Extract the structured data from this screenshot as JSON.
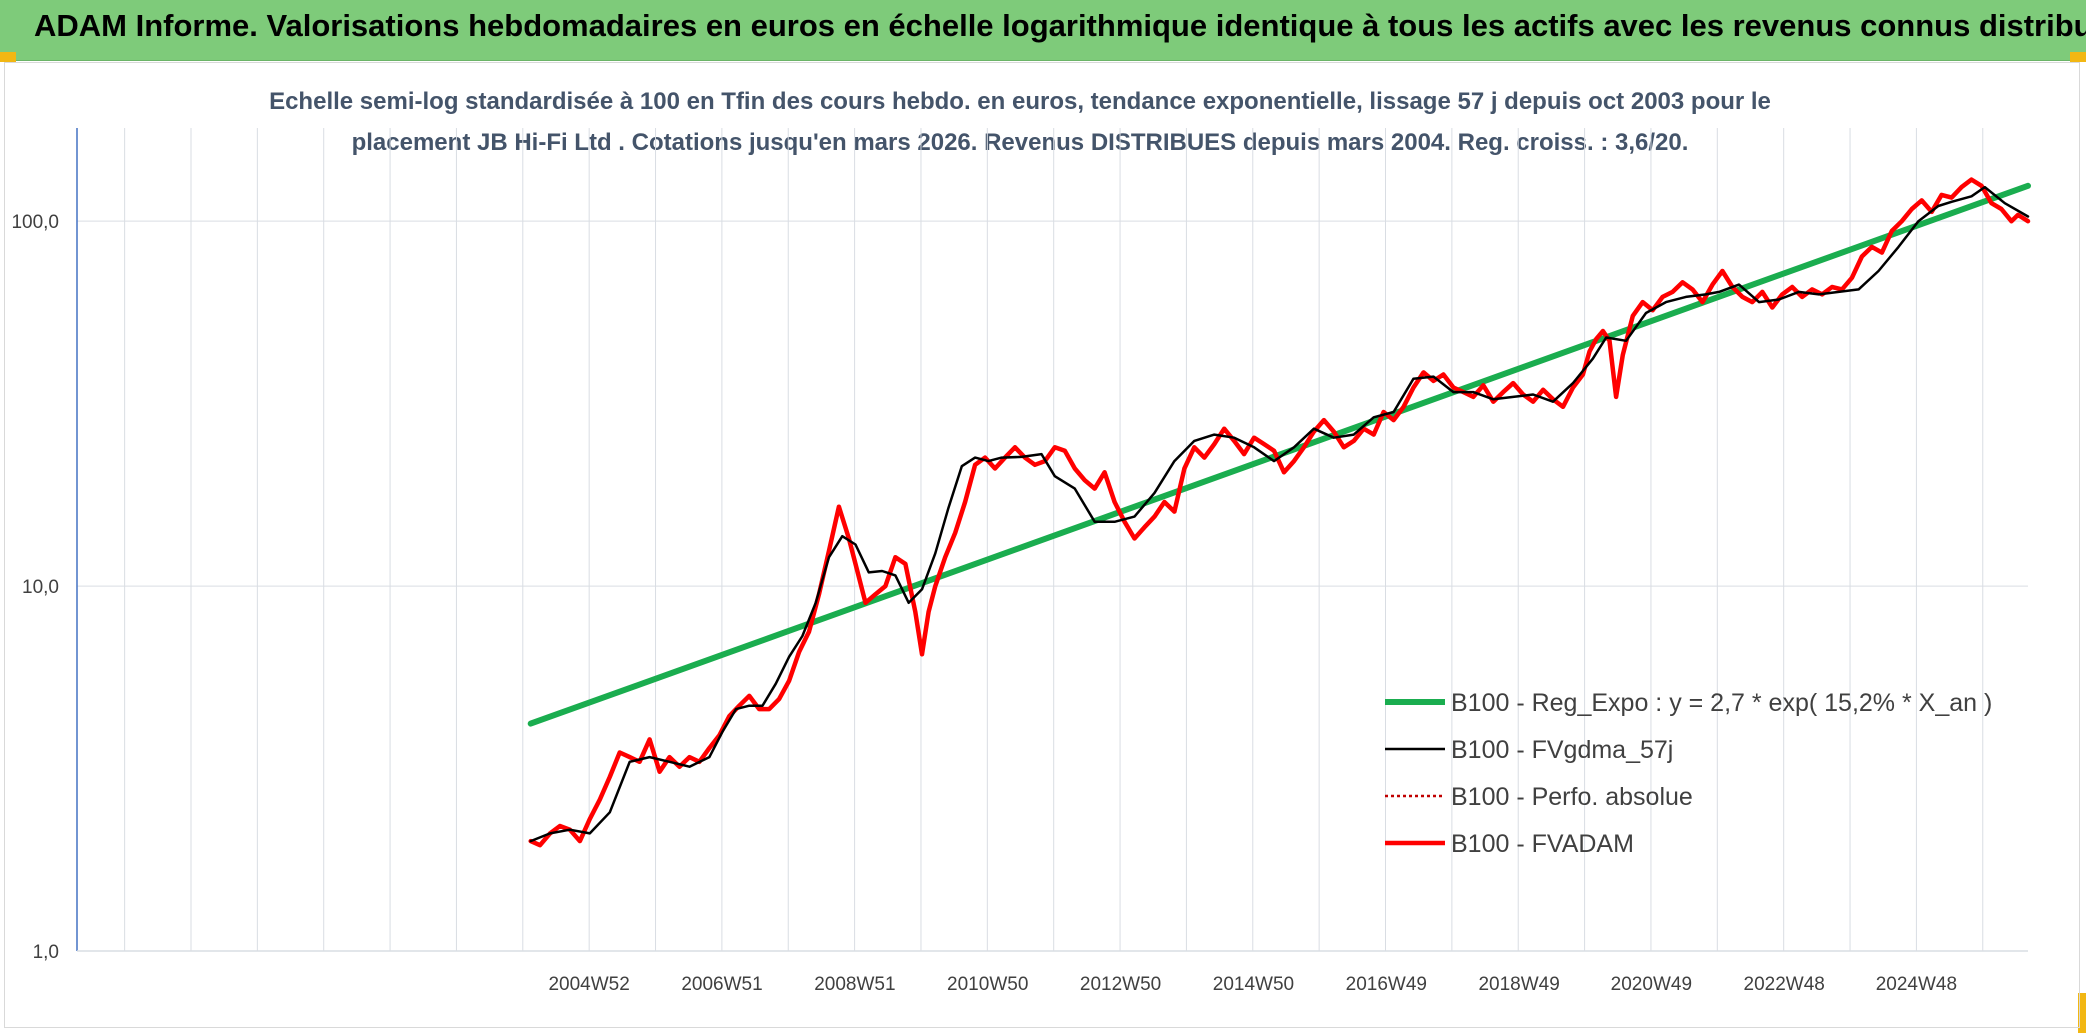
{
  "banner": {
    "title": "ADAM Informe. Valorisations hebdomadaires en euros en échelle logarithmique identique à tous les actifs avec les revenus connus distribués"
  },
  "chart_data": {
    "type": "line",
    "title": "Echelle semi-log standardisée à 100 en Tfin des cours hebdo. en euros, tendance exponentielle, lissage 57 j depuis oct 2003 pour le",
    "subtitle": "placement JB Hi-Fi Ltd . Cotations jusqu'en mars 2026. Revenus DISTRIBUES depuis mars 2004. Reg. croiss. : 3,6/20.",
    "y_scale": "log",
    "ylim": [
      1,
      180
    ],
    "y_ticks": [
      1,
      10,
      100
    ],
    "y_tick_labels": [
      "1,0",
      "10,0",
      "100,0"
    ],
    "xlim": [
      1997.28,
      2026.65
    ],
    "x_ticks": [
      2004.99,
      2006.99,
      2008.99,
      2010.99,
      2012.99,
      2014.99,
      2016.99,
      2018.99,
      2020.98,
      2022.98,
      2024.97
    ],
    "x_tick_labels": [
      "2004W52",
      "2006W51",
      "2008W51",
      "2010W50",
      "2012W50",
      "2014W50",
      "2016W49",
      "2018W49",
      "2020W49",
      "2022W48",
      "2024W48"
    ],
    "grid": {
      "vertical": true,
      "horizontal": true
    },
    "legend_position": "bottom-right",
    "colors": {
      "reg": "#1aad4f",
      "fvgdma": "#000000",
      "perfo": "#c00000",
      "fvadam": "#ff0000",
      "grid": "#d9dde3",
      "axis": "#4472c4"
    },
    "series": [
      {
        "name": "B100 - Reg_Expo : y = 2,7 * exp( 15,2% *  X_an )",
        "x": [
          2004.11,
          2026.65
        ],
        "y": [
          4.2,
          125
        ]
      },
      {
        "name": "B100 - FVgdma_57j",
        "x": [
          2004.11,
          2004.4,
          2004.7,
          2005.0,
          2005.3,
          2005.6,
          2005.9,
          2006.2,
          2006.5,
          2006.8,
          2007.0,
          2007.2,
          2007.4,
          2007.6,
          2007.8,
          2008.0,
          2008.2,
          2008.4,
          2008.6,
          2008.8,
          2009.0,
          2009.2,
          2009.4,
          2009.6,
          2009.8,
          2010.0,
          2010.2,
          2010.4,
          2010.6,
          2010.8,
          2011.0,
          2011.2,
          2011.5,
          2011.8,
          2012.0,
          2012.3,
          2012.6,
          2012.9,
          2013.2,
          2013.5,
          2013.8,
          2014.1,
          2014.4,
          2014.7,
          2015.0,
          2015.3,
          2015.6,
          2015.9,
          2016.2,
          2016.5,
          2016.8,
          2017.1,
          2017.4,
          2017.7,
          2018.0,
          2018.3,
          2018.6,
          2018.9,
          2019.2,
          2019.5,
          2019.8,
          2020.1,
          2020.3,
          2020.6,
          2020.9,
          2021.2,
          2021.5,
          2021.8,
          2022.0,
          2022.3,
          2022.6,
          2022.9,
          2023.2,
          2023.5,
          2023.8,
          2024.1,
          2024.4,
          2024.7,
          2025.0,
          2025.3,
          2025.5,
          2025.8,
          2026.0,
          2026.3,
          2026.65
        ],
        "y": [
          2.0,
          2.1,
          2.15,
          2.1,
          2.4,
          3.3,
          3.4,
          3.3,
          3.2,
          3.4,
          4.0,
          4.6,
          4.7,
          4.7,
          5.4,
          6.4,
          7.3,
          9.0,
          12.0,
          13.7,
          13.0,
          10.9,
          11.0,
          10.7,
          9.0,
          9.8,
          12.3,
          16.4,
          21.3,
          22.5,
          22.0,
          22.5,
          22.6,
          23.0,
          20.0,
          18.5,
          15.0,
          15.0,
          15.5,
          18.0,
          22.0,
          25.0,
          26.0,
          25.5,
          24.0,
          22.0,
          24.0,
          27.0,
          25.5,
          26.0,
          29.0,
          30.0,
          37.0,
          37.5,
          34.0,
          34.0,
          32.5,
          33.0,
          33.5,
          32.0,
          36.0,
          42.0,
          48.0,
          47.0,
          56.0,
          60.0,
          62.0,
          63.0,
          64.0,
          67.0,
          60.0,
          61.0,
          64.0,
          63.0,
          64.0,
          65.0,
          73.0,
          85.0,
          100.0,
          110.0,
          113.0,
          117.0,
          124.0,
          112.0,
          103.0
        ]
      },
      {
        "name": "B100 - Perfo. absolue",
        "x": [
          2004.11,
          2026.65
        ],
        "y": [
          2.0,
          100.0
        ]
      },
      {
        "name": "B100 - FVADAM",
        "x": [
          2004.11,
          2004.25,
          2004.4,
          2004.55,
          2004.7,
          2004.85,
          2005.0,
          2005.15,
          2005.3,
          2005.45,
          2005.6,
          2005.75,
          2005.9,
          2006.05,
          2006.2,
          2006.35,
          2006.5,
          2006.65,
          2006.8,
          2006.95,
          2007.1,
          2007.25,
          2007.4,
          2007.55,
          2007.7,
          2007.85,
          2008.0,
          2008.15,
          2008.3,
          2008.45,
          2008.6,
          2008.75,
          2008.9,
          2009.0,
          2009.15,
          2009.3,
          2009.45,
          2009.6,
          2009.75,
          2009.9,
          2010.0,
          2010.1,
          2010.2,
          2010.35,
          2010.5,
          2010.65,
          2010.8,
          2010.95,
          2011.1,
          2011.25,
          2011.4,
          2011.55,
          2011.7,
          2011.85,
          2012.0,
          2012.15,
          2012.3,
          2012.45,
          2012.6,
          2012.75,
          2012.9,
          2013.05,
          2013.2,
          2013.35,
          2013.5,
          2013.65,
          2013.8,
          2013.95,
          2014.1,
          2014.25,
          2014.4,
          2014.55,
          2014.7,
          2014.85,
          2015.0,
          2015.15,
          2015.3,
          2015.45,
          2015.6,
          2015.75,
          2015.9,
          2016.05,
          2016.2,
          2016.35,
          2016.5,
          2016.65,
          2016.8,
          2016.95,
          2017.1,
          2017.25,
          2017.4,
          2017.55,
          2017.7,
          2017.85,
          2018.0,
          2018.15,
          2018.3,
          2018.45,
          2018.6,
          2018.75,
          2018.9,
          2019.05,
          2019.2,
          2019.35,
          2019.5,
          2019.65,
          2019.8,
          2019.95,
          2020.05,
          2020.15,
          2020.25,
          2020.35,
          2020.45,
          2020.55,
          2020.7,
          2020.85,
          2021.0,
          2021.15,
          2021.3,
          2021.45,
          2021.6,
          2021.75,
          2021.9,
          2022.05,
          2022.2,
          2022.35,
          2022.5,
          2022.65,
          2022.8,
          2022.95,
          2023.1,
          2023.25,
          2023.4,
          2023.55,
          2023.7,
          2023.85,
          2024.0,
          2024.15,
          2024.3,
          2024.45,
          2024.6,
          2024.75,
          2024.9,
          2025.05,
          2025.2,
          2025.35,
          2025.5,
          2025.65,
          2025.8,
          2025.95,
          2026.1,
          2026.25,
          2026.4,
          2026.5,
          2026.65
        ],
        "y": [
          2.0,
          1.95,
          2.1,
          2.2,
          2.15,
          2.0,
          2.3,
          2.6,
          3.0,
          3.5,
          3.4,
          3.3,
          3.8,
          3.1,
          3.4,
          3.2,
          3.4,
          3.3,
          3.6,
          3.9,
          4.4,
          4.7,
          5.0,
          4.6,
          4.6,
          4.9,
          5.5,
          6.6,
          7.5,
          9.5,
          12.5,
          16.5,
          13.5,
          11.5,
          9.0,
          9.5,
          10.0,
          12.0,
          11.5,
          8.5,
          6.5,
          8.5,
          10.0,
          12.0,
          14.0,
          17.0,
          21.5,
          22.5,
          21.0,
          22.5,
          24.0,
          22.5,
          21.5,
          22.0,
          24.0,
          23.5,
          21.0,
          19.5,
          18.5,
          20.5,
          17.0,
          15.0,
          13.5,
          14.5,
          15.5,
          17.0,
          16.0,
          21.0,
          24.0,
          22.5,
          24.5,
          27.0,
          25.0,
          23.0,
          25.5,
          24.5,
          23.5,
          20.5,
          22.0,
          24.0,
          26.5,
          28.5,
          26.5,
          24.0,
          25.0,
          27.0,
          26.0,
          30.0,
          28.5,
          31.0,
          35.0,
          38.5,
          36.5,
          38.0,
          35.0,
          34.0,
          33.0,
          35.5,
          32.0,
          34.0,
          36.0,
          33.5,
          32.0,
          34.5,
          32.5,
          31.0,
          35.0,
          38.0,
          44.0,
          47.5,
          50.0,
          47.0,
          33.0,
          43.0,
          55.0,
          60.0,
          57.0,
          62.0,
          64.0,
          68.0,
          65.0,
          60.0,
          67.0,
          73.0,
          66.0,
          62.0,
          60.0,
          64.0,
          58.0,
          63.0,
          66.0,
          62.0,
          65.0,
          63.0,
          66.0,
          65.0,
          70.0,
          80.0,
          85.0,
          82.0,
          94.0,
          100.0,
          108.0,
          114.0,
          106.0,
          118.0,
          116.0,
          124.0,
          130.0,
          125.0,
          112.0,
          108.0,
          100.0,
          104.0,
          100.0
        ]
      }
    ]
  }
}
